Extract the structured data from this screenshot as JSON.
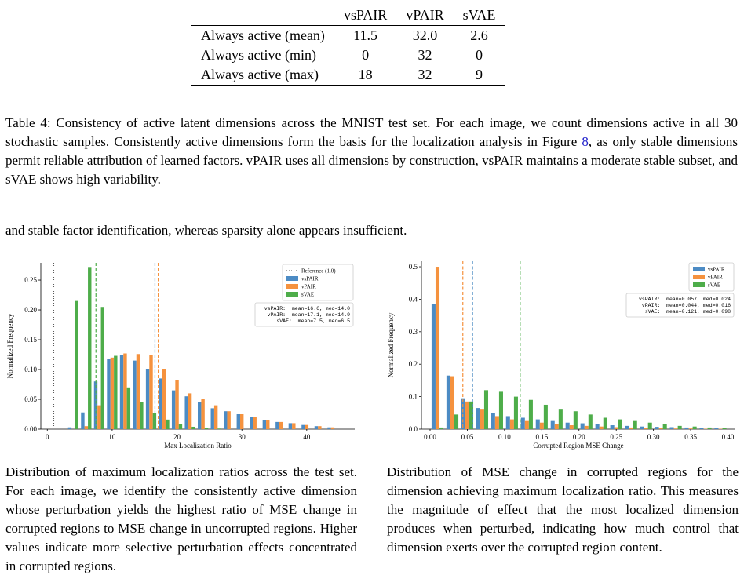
{
  "table": {
    "columns": [
      "vsPAIR",
      "vPAIR",
      "sVAE"
    ],
    "rows": [
      [
        "Always active (mean)",
        "11.5",
        "32.0",
        "2.6"
      ],
      [
        "Always active (min)",
        "0",
        "32",
        "0"
      ],
      [
        "Always active (max)",
        "18",
        "32",
        "9"
      ]
    ]
  },
  "table_caption": {
    "before": "Table 4: Consistency of active latent dimensions across the MNIST test set. For each image, we count dimensions active in all 30 stochastic samples. Consistently active dimensions form the basis for the localization analysis in Figure ",
    "ref": "8",
    "after": ", as only stable dimensions permit reliable attribution of learned factors. vPAIR uses all dimensions by construction, vsPAIR maintains a moderate stable subset, and sVAE shows high variability."
  },
  "body_text": "and stable factor identification, whereas sparsity alone appears insufficient.",
  "chart_data": [
    {
      "type": "histogram",
      "xlabel": "Max Localization Ratio",
      "ylabel": "Normalized Frequency",
      "bins": [
        3,
        5,
        7,
        9,
        11,
        13,
        15,
        17,
        19,
        21,
        23,
        25,
        27,
        29,
        31,
        33,
        35,
        37,
        39,
        41,
        43,
        45
      ],
      "series": [
        {
          "name": "vsPAIR",
          "color": "#4c8bc4",
          "mean": 16.6,
          "values": [
            0.003,
            0.028,
            0.08,
            0.118,
            0.125,
            0.115,
            0.1,
            0.085,
            0.065,
            0.055,
            0.045,
            0.035,
            0.03,
            0.025,
            0.02,
            0.015,
            0.012,
            0.01,
            0.007,
            0.005,
            0.003
          ]
        },
        {
          "name": "vPAIR",
          "color": "#f5923e",
          "mean": 17.1,
          "values": [
            0,
            0.005,
            0.04,
            0.12,
            0.127,
            0.126,
            0.125,
            0.1,
            0.082,
            0.06,
            0.05,
            0.04,
            0.03,
            0.025,
            0.02,
            0.015,
            0.012,
            0.01,
            0.007,
            0.005,
            0.003
          ]
        },
        {
          "name": "sVAE",
          "color": "#4ead4a",
          "mean": 7.5,
          "values": [
            0.215,
            0.272,
            0.205,
            0.123,
            0.07,
            0.045,
            0.027,
            0.016,
            0.008,
            0.004,
            0.002,
            0.001,
            0,
            0,
            0,
            0,
            0,
            0,
            0,
            0,
            0
          ]
        }
      ],
      "reference": 1.0,
      "reference_label": "Reference (1.0)",
      "stats_lines": [
        "vsPAIR:  mean=16.6, med=14.0",
        "vPAIR:  mean=17.1, med=14.9",
        "sVAE:  mean=7.5, med=6.5"
      ],
      "xlim": [
        -1,
        47.4
      ],
      "ylim": [
        0,
        0.279
      ],
      "xticks": [
        0,
        10,
        20,
        30,
        40
      ],
      "yticks": [
        {
          "value": 0,
          "label": "0.00"
        },
        {
          "value": 0.05,
          "label": "0.05"
        },
        {
          "value": 0.1,
          "label": "0.10"
        },
        {
          "value": 0.15,
          "label": "0.15"
        },
        {
          "value": 0.2,
          "label": "0.20"
        },
        {
          "value": 0.25,
          "label": "0.25"
        }
      ],
      "legend": "upper right"
    },
    {
      "type": "histogram",
      "xlabel": "Corrupted Region MSE Change",
      "ylabel": "Normalized Frequency",
      "bins": [
        0,
        0.02,
        0.04,
        0.06,
        0.08,
        0.1,
        0.12,
        0.14,
        0.16,
        0.18,
        0.2,
        0.22,
        0.24,
        0.26,
        0.28,
        0.3,
        0.32,
        0.34,
        0.36,
        0.38,
        0.4
      ],
      "series": [
        {
          "name": "vsPAIR",
          "color": "#4c8bc4",
          "mean": 0.057,
          "values": [
            0.385,
            0.165,
            0.095,
            0.065,
            0.05,
            0.04,
            0.035,
            0.03,
            0.025,
            0.02,
            0.018,
            0.015,
            0.012,
            0.01,
            0.008,
            0.007,
            0.006,
            0.005,
            0.004,
            0.003
          ]
        },
        {
          "name": "vPAIR",
          "color": "#f5923e",
          "mean": 0.044,
          "values": [
            0.5,
            0.163,
            0.085,
            0.06,
            0.04,
            0.03,
            0.025,
            0.02,
            0.015,
            0.012,
            0.01,
            0.008,
            0.006,
            0.005,
            0.004,
            0.003,
            0.002,
            0.002,
            0.001,
            0.001
          ]
        },
        {
          "name": "sVAE",
          "color": "#4ead4a",
          "mean": 0.121,
          "values": [
            0.005,
            0.045,
            0.085,
            0.12,
            0.115,
            0.1,
            0.09,
            0.075,
            0.06,
            0.055,
            0.045,
            0.035,
            0.03,
            0.025,
            0.02,
            0.015,
            0.01,
            0.008,
            0.005,
            0.004
          ]
        }
      ],
      "stats_lines": [
        "vsPAIR:  mean=0.057, med=0.024",
        "vPAIR:  mean=0.044, med=0.016",
        "sVAE:  mean=0.121, med=0.098"
      ],
      "xlim": [
        -0.0116,
        0.41
      ],
      "ylim": [
        0,
        0.517
      ],
      "xticks": [
        {
          "value": 0,
          "label": "0.00"
        },
        {
          "value": 0.05,
          "label": "0.05"
        },
        {
          "value": 0.1,
          "label": "0.10"
        },
        {
          "value": 0.15,
          "label": "0.15"
        },
        {
          "value": 0.2,
          "label": "0.20"
        },
        {
          "value": 0.25,
          "label": "0.25"
        },
        {
          "value": 0.3,
          "label": "0.30"
        },
        {
          "value": 0.35,
          "label": "0.35"
        },
        {
          "value": 0.4,
          "label": "0.40"
        }
      ],
      "yticks": [
        {
          "value": 0,
          "label": "0.0"
        },
        {
          "value": 0.1,
          "label": "0.1"
        },
        {
          "value": 0.2,
          "label": "0.2"
        },
        {
          "value": 0.3,
          "label": "0.3"
        },
        {
          "value": 0.4,
          "label": "0.4"
        },
        {
          "value": 0.5,
          "label": "0.5"
        }
      ],
      "legend": "upper right"
    }
  ],
  "figure_captions": [
    "Distribution of maximum localization ratios across the test set. For each image, we identify the consistently active dimension whose perturbation yields the highest ratio of MSE change in corrupted regions to MSE change in uncorrupted regions. Higher values indicate more selective perturbation effects concentrated in corrupted regions.",
    "Distribution of MSE change in corrupted regions for the dimension achieving maximum localization ratio. This measures the magnitude of effect that the most localized dimension produces when perturbed, indicating how much control that dimension exerts over the corrupted region content."
  ]
}
